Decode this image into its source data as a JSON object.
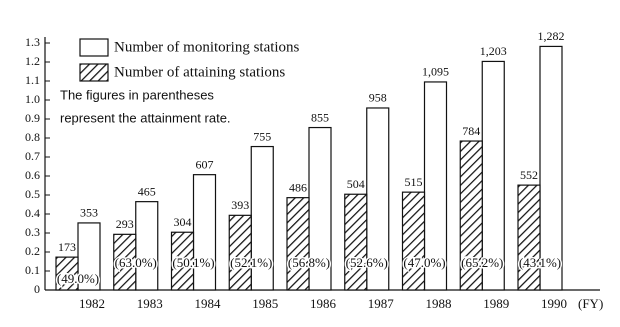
{
  "chart_data": {
    "type": "bar",
    "categories": [
      "1982",
      "1983",
      "1984",
      "1985",
      "1986",
      "1987",
      "1988",
      "1989",
      "1990"
    ],
    "x_label": "(FY)",
    "series": [
      {
        "name": "Number of monitoring stations",
        "color": "#ffffff",
        "values": [
          0.353,
          0.465,
          0.607,
          0.755,
          0.855,
          0.958,
          1.095,
          1.203,
          1.282
        ],
        "value_labels": [
          "353",
          "465",
          "607",
          "755",
          "855",
          "958",
          "1,095",
          "1,203",
          "1,282"
        ]
      },
      {
        "name": "Number of attaining stations",
        "color": "hatched",
        "values": [
          0.173,
          0.293,
          0.304,
          0.393,
          0.486,
          0.504,
          0.515,
          0.784,
          0.552
        ],
        "value_labels": [
          "173",
          "293",
          "304",
          "393",
          "486",
          "504",
          "515",
          "784",
          "552"
        ]
      }
    ],
    "rate_labels": [
      "(49.0%)",
      "(63.0%)",
      "(50.1%)",
      "(52.1%)",
      "(56.8%)",
      "(52.6%)",
      "(47.0%)",
      "(65.2%)",
      "(43.1%)"
    ],
    "annotations": [
      "The figures in parentheses",
      "represent the attainment rate."
    ],
    "ylim": [
      0,
      1.3
    ],
    "yticks": [
      0,
      0.1,
      0.2,
      0.3,
      0.4,
      0.5,
      0.6,
      0.7,
      0.8,
      0.9,
      {
        "value": 1,
        "label": "1.0"
      },
      1.1,
      1.2,
      1.3
    ]
  }
}
